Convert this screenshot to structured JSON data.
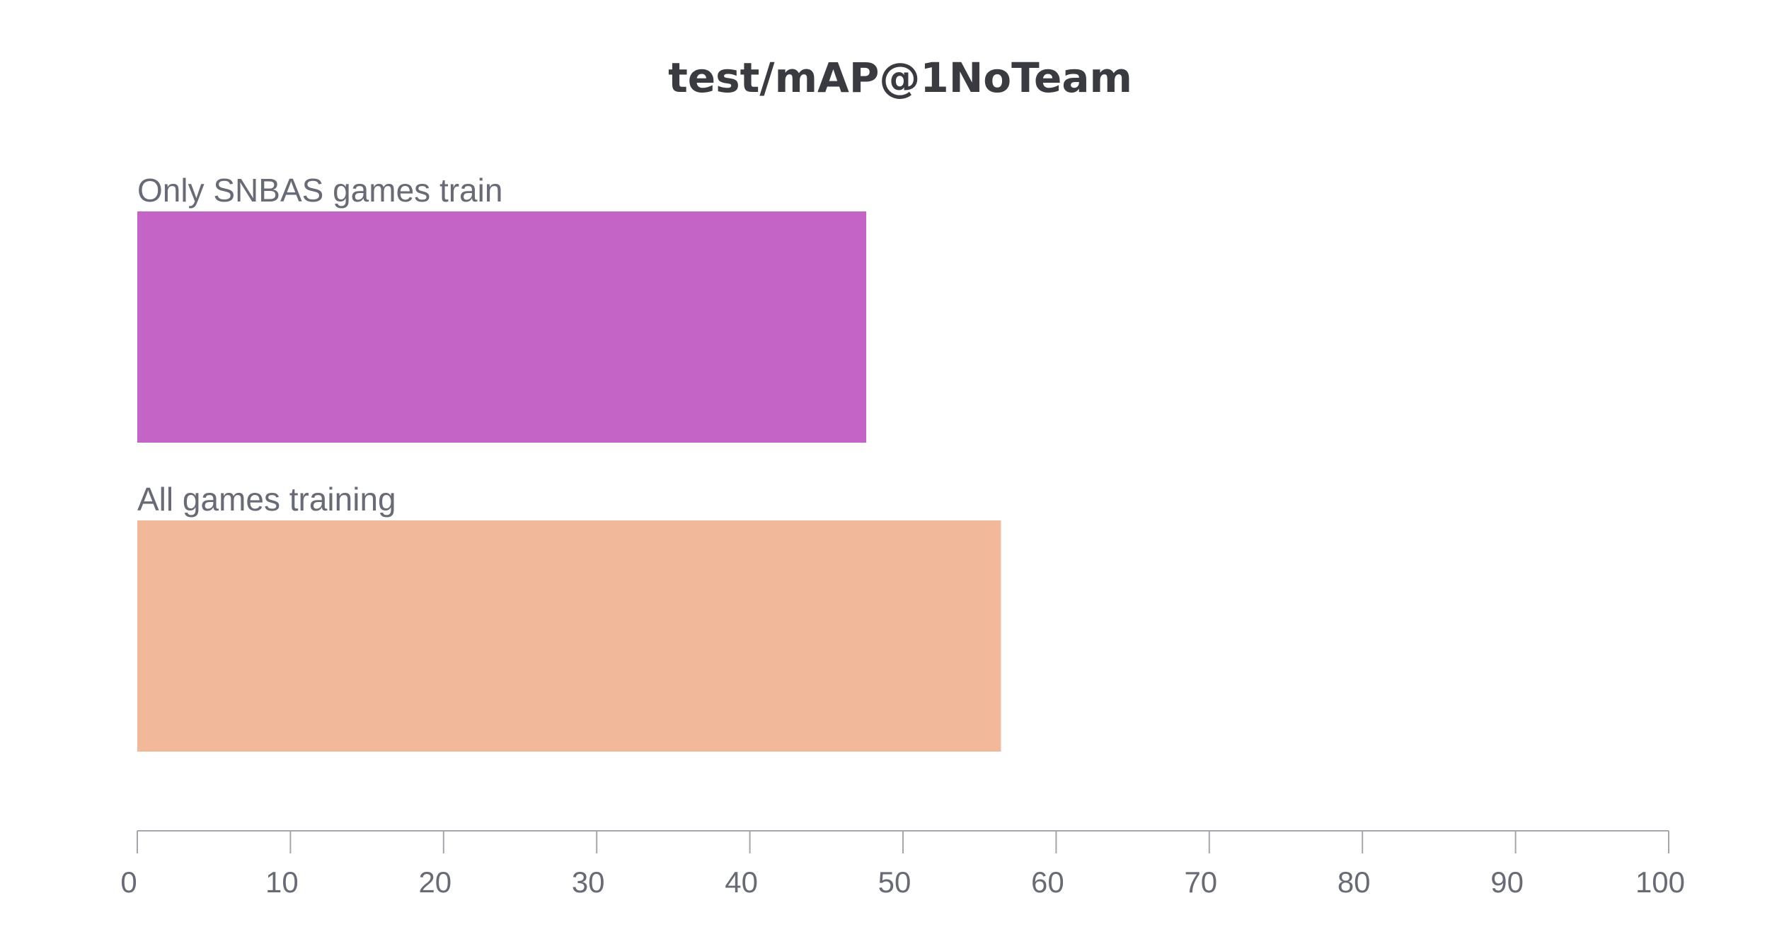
{
  "chart_data": {
    "type": "bar",
    "orientation": "horizontal",
    "title": "test/mAP@1NoTeam",
    "xlabel": "",
    "ylabel": "",
    "categories": [
      "Only SNBAS games train",
      "All games training"
    ],
    "values": [
      47.6,
      56.4
    ],
    "colors": [
      "#c464c6",
      "#f1b899"
    ],
    "xlim": [
      0,
      100
    ],
    "xticks": [
      0,
      10,
      20,
      30,
      40,
      50,
      60,
      70,
      80,
      90,
      100
    ],
    "grid": false,
    "legend": "none"
  }
}
